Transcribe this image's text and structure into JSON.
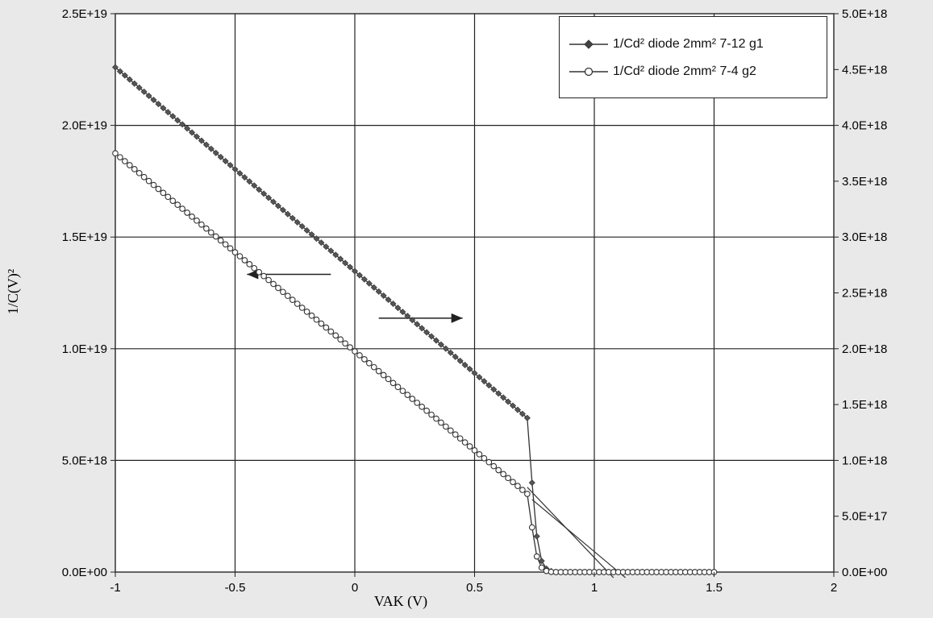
{
  "chart_data": {
    "type": "scatter",
    "title": "",
    "xlabel": "VAK (V)",
    "ylabel": "1/C(V)²",
    "xlim": [
      -1,
      2
    ],
    "ylim_left": [
      0,
      2.5e+19
    ],
    "ylim_right": [
      0,
      5e+18
    ],
    "x_ticks": [
      "-1",
      "-0.5",
      "0",
      "0.5",
      "1",
      "1.5",
      "2"
    ],
    "y_ticks_left": [
      "0.0E+00",
      "5.0E+18",
      "1.0E+19",
      "1.5E+19",
      "2.0E+19",
      "2.5E+19"
    ],
    "y_ticks_right": [
      "0.0E+00",
      "5.0E+17",
      "1.0E+18",
      "1.5E+18",
      "2.0E+18",
      "2.5E+18",
      "3.0E+18",
      "3.5E+18",
      "4.0E+18",
      "4.5E+18",
      "5.0E+18"
    ],
    "grid": true,
    "legend_position": "top-right",
    "series": [
      {
        "name": "1/Cd² diode 2mm² 7-12 g1",
        "marker": "diamond",
        "axis": "right",
        "x": [
          -1.0,
          0.72,
          0.74,
          0.76,
          0.78,
          0.8,
          0.82,
          0.84,
          1.5
        ],
        "values": [
          4.52e+18,
          1.38e+18,
          8e+17,
          3.2e+17,
          1e+17,
          3e+16,
          8000000000000000.0,
          0,
          0
        ]
      },
      {
        "name": "1/Cd² diode 2mm² 7-4 g2",
        "marker": "circle",
        "axis": "left",
        "x": [
          -1.0,
          0.72,
          0.74,
          0.76,
          0.78,
          0.8,
          0.82,
          0.84,
          1.5
        ],
        "values": [
          1.875e+19,
          3.5e+18,
          2e+18,
          7e+17,
          2e+17,
          5e+16,
          1e+16,
          0,
          0
        ]
      }
    ],
    "annotations": [
      {
        "type": "arrow",
        "direction": "left",
        "points_to": "left axis",
        "x": [
          -0.45,
          -0.1
        ],
        "y_left": 1.333e+19
      },
      {
        "type": "arrow",
        "direction": "right",
        "points_to": "right axis",
        "x": [
          0.1,
          0.45
        ],
        "y_left": 1.137e+19
      },
      {
        "type": "tangent",
        "from": [
          0.72,
          3.8e+18
        ],
        "to": [
          1.08,
          -2.5e+17
        ]
      },
      {
        "type": "tangent",
        "from": [
          0.74,
          3.25e+18
        ],
        "to": [
          1.13,
          -2.5e+17
        ]
      }
    ]
  }
}
